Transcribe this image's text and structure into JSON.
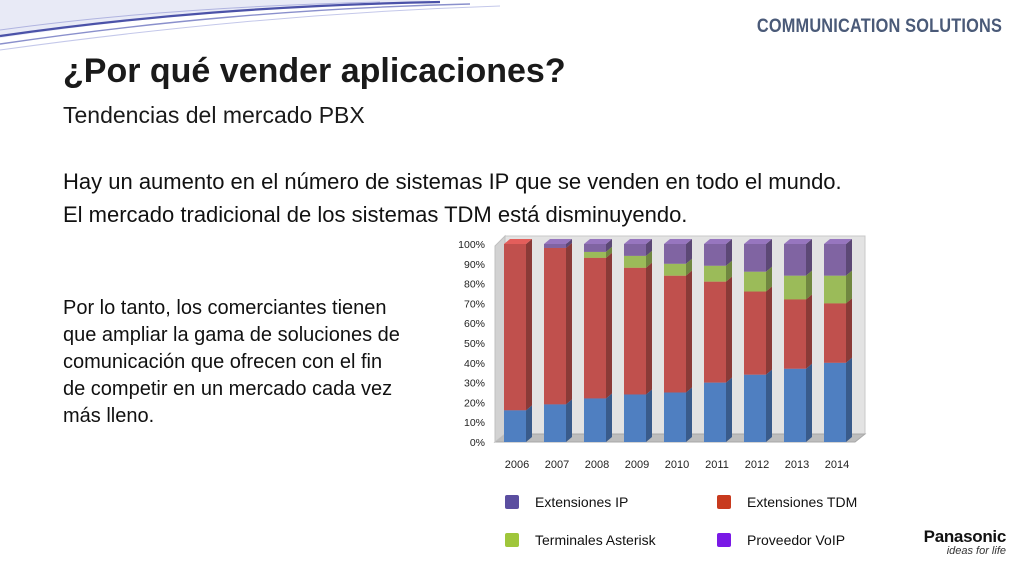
{
  "header": {
    "brand": "COMMUNICATION SOLUTIONS"
  },
  "title": "¿Por qué vender aplicaciones?",
  "subtitle": "Tendencias del mercado PBX",
  "intro": {
    "line1": "Hay un aumento en el número de sistemas IP que se venden en todo el mundo.",
    "line2": "El mercado tradicional de los sistemas TDM está disminuyendo."
  },
  "body": "Por lo tanto, los comerciantes tienen que ampliar la gama de soluciones de comunicación que ofrecen con el fin de competir en un mercado cada vez más lleno.",
  "logo": {
    "name": "Panasonic",
    "tagline": "ideas for life"
  },
  "colors": {
    "ip": "#4f7fc1",
    "tdm": "#c0504d",
    "asterisk": "#9bbb59",
    "voip": "#8064a2",
    "legend_ip": "#5b4ea0",
    "legend_tdm": "#c83a1e",
    "legend_asterisk": "#9fc63b",
    "legend_voip": "#7a19e6"
  },
  "chart_data": {
    "type": "bar",
    "stacked": true,
    "categories": [
      "2006",
      "2007",
      "2008",
      "2009",
      "2010",
      "2011",
      "2012",
      "2013",
      "2014"
    ],
    "ylim": [
      0,
      100
    ],
    "yticks": [
      "0%",
      "10%",
      "20%",
      "30%",
      "40%",
      "50%",
      "60%",
      "70%",
      "80%",
      "90%",
      "100%"
    ],
    "series": [
      {
        "name": "Extensiones IP",
        "color_key": "ip",
        "values": [
          16,
          19,
          22,
          24,
          25,
          30,
          34,
          37,
          40
        ]
      },
      {
        "name": "Extensiones TDM",
        "color_key": "tdm",
        "values": [
          84,
          79,
          71,
          64,
          59,
          51,
          42,
          35,
          30
        ]
      },
      {
        "name": "Terminales Asterisk",
        "color_key": "asterisk",
        "values": [
          0,
          0,
          3,
          6,
          6,
          8,
          10,
          12,
          14
        ]
      },
      {
        "name": "Proveedor VoIP",
        "color_key": "voip",
        "values": [
          0,
          2,
          4,
          6,
          10,
          11,
          14,
          16,
          16
        ]
      }
    ],
    "legend": [
      {
        "label": "Extensiones IP",
        "color_key": "legend_ip"
      },
      {
        "label": "Extensiones TDM",
        "color_key": "legend_tdm"
      },
      {
        "label": "Terminales Asterisk",
        "color_key": "legend_asterisk"
      },
      {
        "label": "Proveedor VoIP",
        "color_key": "legend_voip"
      }
    ],
    "legend_position": "bottom",
    "grid": false
  }
}
